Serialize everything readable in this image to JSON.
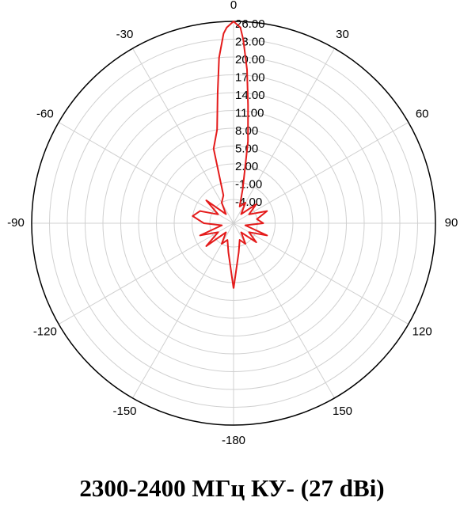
{
  "chart_data": {
    "type": "polar",
    "title": "2300-2400 МГц КУ- (27 dBi)",
    "series": [
      {
        "color": "#e41b1b",
        "x": [
          -180,
          -170,
          -160,
          -150,
          -140,
          -130,
          -120,
          -110,
          -100,
          -90,
          -80,
          -70,
          -60,
          -50,
          -40,
          -30,
          -20,
          -15,
          -10,
          -7,
          -5,
          -3,
          -2,
          0,
          2,
          3,
          5,
          7,
          10,
          15,
          20,
          30,
          40,
          50,
          60,
          70,
          80,
          90,
          100,
          110,
          120,
          130,
          140,
          150,
          160,
          170,
          180
        ],
        "values": [
          3,
          -3,
          -5,
          -4,
          -6,
          -2,
          -5,
          -2,
          -6,
          -3,
          -1,
          -2,
          -5,
          -2,
          -6,
          -4,
          -3,
          5,
          8,
          14,
          20,
          24,
          25,
          26,
          25,
          23,
          18,
          12,
          6,
          -2,
          -5,
          -4,
          -6,
          -3,
          -5,
          -2,
          -4,
          -3,
          -6,
          -2,
          -5,
          -3,
          -6,
          -4,
          -5,
          -3,
          3
        ]
      }
    ],
    "rlim": [
      -8,
      26
    ],
    "rticks": [
      {
        "value": -4,
        "label": "-4.00"
      },
      {
        "value": -1,
        "label": "-1.00"
      },
      {
        "value": 2,
        "label": "2.00"
      },
      {
        "value": 5,
        "label": "5.00"
      },
      {
        "value": 8,
        "label": "8.00"
      },
      {
        "value": 11,
        "label": "11.00"
      },
      {
        "value": 14,
        "label": "14.00"
      },
      {
        "value": 17,
        "label": "17.00"
      },
      {
        "value": 20,
        "label": "20.00"
      },
      {
        "value": 23,
        "label": "23.00"
      },
      {
        "value": 26,
        "label": "26.00"
      }
    ],
    "xticks": [
      0,
      30,
      60,
      90,
      120,
      150,
      -180,
      -150,
      -120,
      -90,
      -60,
      -30
    ]
  }
}
